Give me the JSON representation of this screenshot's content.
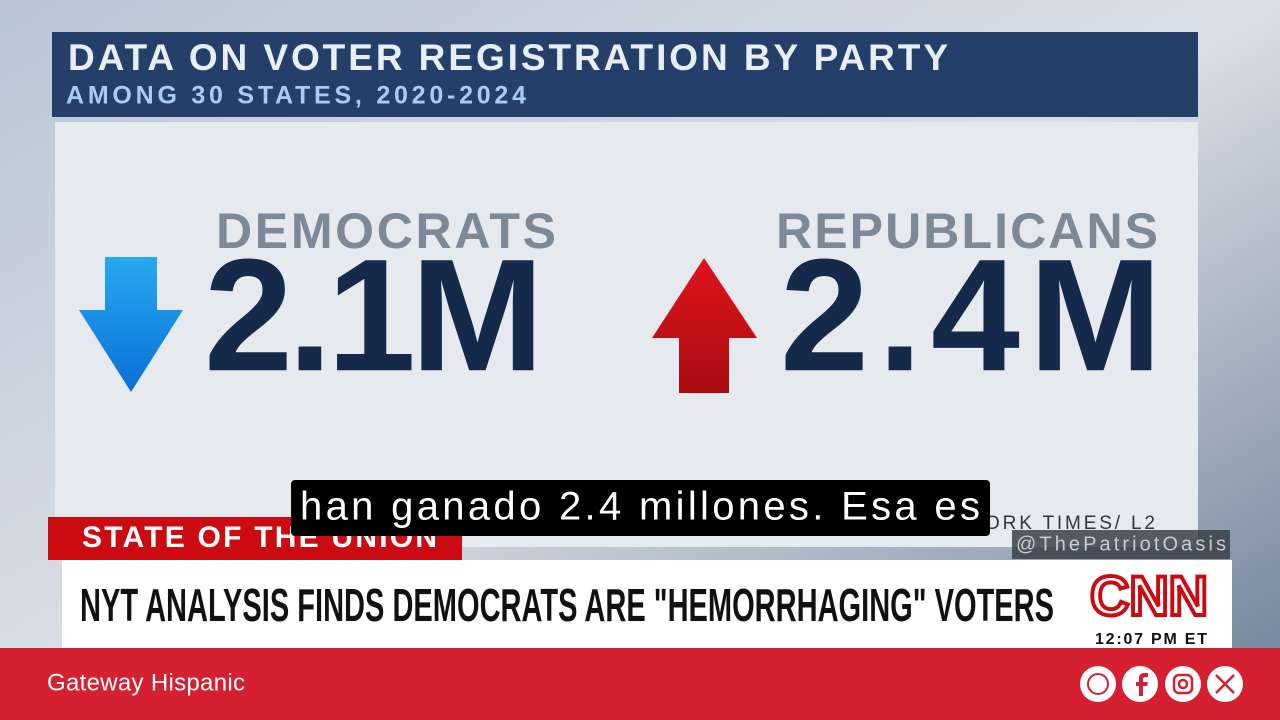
{
  "graphic": {
    "title": "DATA ON VOTER REGISTRATION BY PARTY",
    "subtitle": "AMONG 30 STATES, 2020-2024",
    "parties": [
      {
        "name": "DEMOCRATS",
        "value": "2.1M"
      },
      {
        "name": "REPUBLICANS",
        "value": "2.4M"
      }
    ],
    "source": "ORK TIMES/ L2"
  },
  "show": {
    "program": "STATE OF THE UNION",
    "headline": "NYT ANALYSIS FINDS DEMOCRATS ARE \"HEMORRHAGING\" VOTERS",
    "network": "CNN",
    "time": "12:07 PM ET"
  },
  "caption": "han ganado 2.4 millones. Esa es",
  "watermark": "@ThePatriotOasis",
  "footer": {
    "brand": "Gateway Hispanic"
  }
}
